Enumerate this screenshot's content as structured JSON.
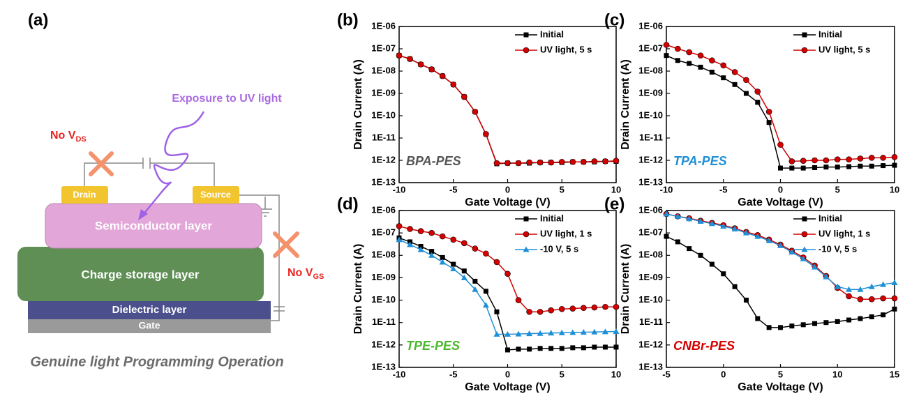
{
  "diagram": {
    "panel": "(a)",
    "uv_label": "Exposure to UV light",
    "no_vds": {
      "text": "No V",
      "sub": "DS"
    },
    "no_vgs": {
      "text": "No V",
      "sub": "GS"
    },
    "drain": "Drain",
    "source": "Source",
    "semiconductor": "Semiconductor layer",
    "charge_storage": "Charge storage layer",
    "dielectric": "Dielectric layer",
    "gate": "Gate",
    "caption": "Genuine light Programming Operation"
  },
  "chart_data": [
    {
      "type": "line",
      "panel": "(b)",
      "x_label": "Gate Voltage (V)",
      "y_label": "Drain Current (A)",
      "log_y": true,
      "legend": "upper right",
      "annotation": {
        "text": "BPA-PES",
        "color": "#555555"
      },
      "xlim": [
        -10,
        10
      ],
      "xticks": [
        -10,
        -5,
        0,
        5,
        10
      ],
      "ylim": [
        1e-13,
        1e-06
      ],
      "yticks": [
        {
          "value": 1e-13,
          "label": "1E-13"
        },
        {
          "value": 1e-12,
          "label": "1E-12"
        },
        {
          "value": 1e-11,
          "label": "1E-11"
        },
        {
          "value": 1e-10,
          "label": "1E-10"
        },
        {
          "value": 1e-09,
          "label": "1E-09"
        },
        {
          "value": 1e-08,
          "label": "1E-08"
        },
        {
          "value": 1e-07,
          "label": "1E-07"
        },
        {
          "value": 1e-06,
          "label": "1E-06"
        }
      ],
      "x": [
        -10,
        -9,
        -8,
        -7,
        -6,
        -5,
        -4,
        -3,
        -2,
        -1,
        0,
        1,
        2,
        3,
        4,
        5,
        6,
        7,
        8,
        9,
        10
      ],
      "series": [
        {
          "name": "Initial",
          "color": "#000000",
          "marker": "square",
          "values": [
            5e-08,
            3.5e-08,
            2e-08,
            1.2e-08,
            6e-09,
            2.5e-09,
            7e-10,
            1.5e-10,
            1.5e-11,
            7e-13,
            7.5e-13,
            7.5e-13,
            7.5e-13,
            8e-13,
            8e-13,
            8e-13,
            8.5e-13,
            8.5e-13,
            8.5e-13,
            9e-13,
            9e-13
          ]
        },
        {
          "name": "UV light, 5 s",
          "color": "#d40000",
          "marker": "circle",
          "values": [
            5e-08,
            3.5e-08,
            2e-08,
            1.2e-08,
            6e-09,
            2.5e-09,
            7e-10,
            1.5e-10,
            1.5e-11,
            7.5e-13,
            7.5e-13,
            7.5e-13,
            8e-13,
            8e-13,
            8e-13,
            8.5e-13,
            8.5e-13,
            8.5e-13,
            9e-13,
            9e-13,
            9.5e-13
          ]
        }
      ]
    },
    {
      "type": "line",
      "panel": "(c)",
      "x_label": "Gate Voltage (V)",
      "y_label": "Drain Current (A)",
      "log_y": true,
      "legend": "upper right",
      "annotation": {
        "text": "TPA-PES",
        "color": "#1f8fd6"
      },
      "xlim": [
        -10,
        10
      ],
      "xticks": [
        -10,
        -5,
        0,
        5,
        10
      ],
      "ylim": [
        1e-13,
        1e-06
      ],
      "yticks": [
        {
          "value": 1e-13,
          "label": "1E-13"
        },
        {
          "value": 1e-12,
          "label": "1E-12"
        },
        {
          "value": 1e-11,
          "label": "1E-11"
        },
        {
          "value": 1e-10,
          "label": "1E-10"
        },
        {
          "value": 1e-09,
          "label": "1E-09"
        },
        {
          "value": 1e-08,
          "label": "1E-08"
        },
        {
          "value": 1e-07,
          "label": "1E-07"
        },
        {
          "value": 1e-06,
          "label": "1E-06"
        }
      ],
      "x": [
        -10,
        -9,
        -8,
        -7,
        -6,
        -5,
        -4,
        -3,
        -2,
        -1,
        0,
        1,
        2,
        3,
        4,
        5,
        6,
        7,
        8,
        9,
        10
      ],
      "series": [
        {
          "name": "Initial",
          "color": "#000000",
          "marker": "square",
          "values": [
            5e-08,
            3e-08,
            2.2e-08,
            1.5e-08,
            9e-09,
            5e-09,
            2.5e-09,
            1e-09,
            4e-10,
            5e-11,
            4.5e-13,
            4.5e-13,
            4.5e-13,
            4.7e-13,
            5e-13,
            5e-13,
            5.2e-13,
            5.5e-13,
            5.5e-13,
            5.8e-13,
            6e-13
          ]
        },
        {
          "name": "UV light, 5 s",
          "color": "#d40000",
          "marker": "circle",
          "values": [
            1.5e-07,
            1e-07,
            7e-08,
            5e-08,
            3e-08,
            1.8e-08,
            9e-09,
            4e-09,
            1.2e-09,
            1.5e-10,
            5e-12,
            9e-13,
            9.5e-13,
            1e-12,
            1e-12,
            1.1e-12,
            1.1e-12,
            1.2e-12,
            1.3e-12,
            1.3e-12,
            1.4e-12
          ]
        }
      ]
    },
    {
      "type": "line",
      "panel": "(d)",
      "x_label": "Gate Voltage (V)",
      "y_label": "Drain Current (A)",
      "log_y": true,
      "legend": "upper right",
      "annotation": {
        "text": "TPE-PES",
        "color": "#4cb82e"
      },
      "xlim": [
        -10,
        10
      ],
      "xticks": [
        -10,
        -5,
        0,
        5,
        10
      ],
      "ylim": [
        1e-13,
        1e-06
      ],
      "yticks": [
        {
          "value": 1e-13,
          "label": "1E-13"
        },
        {
          "value": 1e-12,
          "label": "1E-12"
        },
        {
          "value": 1e-11,
          "label": "1E-11"
        },
        {
          "value": 1e-10,
          "label": "1E-10"
        },
        {
          "value": 1e-09,
          "label": "1E-09"
        },
        {
          "value": 1e-08,
          "label": "1E-08"
        },
        {
          "value": 1e-07,
          "label": "1E-07"
        },
        {
          "value": 1e-06,
          "label": "1E-06"
        }
      ],
      "x": [
        -10,
        -9,
        -8,
        -7,
        -6,
        -5,
        -4,
        -3,
        -2,
        -1,
        0,
        1,
        2,
        3,
        4,
        5,
        6,
        7,
        8,
        9,
        10
      ],
      "series": [
        {
          "name": "Initial",
          "color": "#000000",
          "marker": "square",
          "values": [
            6e-08,
            4e-08,
            2.5e-08,
            1.5e-08,
            8e-09,
            4e-09,
            2e-09,
            7e-10,
            2.5e-10,
            3e-11,
            6e-13,
            6.5e-13,
            6.5e-13,
            7e-13,
            7e-13,
            7e-13,
            7.5e-13,
            7.5e-13,
            8e-13,
            8e-13,
            8e-13
          ]
        },
        {
          "name": "UV light, 1 s",
          "color": "#d40000",
          "marker": "circle",
          "values": [
            2e-07,
            1.5e-07,
            1.2e-07,
            1e-07,
            7e-08,
            5e-08,
            3.5e-08,
            2e-08,
            1.2e-08,
            5e-09,
            1.5e-09,
            1e-10,
            3e-11,
            3e-11,
            3.5e-11,
            4e-11,
            4.2e-11,
            4.5e-11,
            4.7e-11,
            5e-11,
            5e-11
          ]
        },
        {
          "name": "-10 V, 5 s",
          "color": "#1f8fd6",
          "marker": "triangle",
          "values": [
            5e-08,
            3e-08,
            1.8e-08,
            1e-08,
            5e-09,
            2.5e-09,
            1e-09,
            3e-10,
            6e-11,
            3e-12,
            3e-12,
            3.1e-12,
            3.2e-12,
            3.3e-12,
            3.4e-12,
            3.5e-12,
            3.6e-12,
            3.7e-12,
            3.8e-12,
            3.9e-12,
            4e-12
          ]
        }
      ]
    },
    {
      "type": "line",
      "panel": "(e)",
      "x_label": "Gate Voltage (V)",
      "y_label": "Drain Current (A)",
      "log_y": true,
      "legend": "upper right",
      "annotation": {
        "text": "CNBr-PES",
        "color": "#d40000"
      },
      "xlim": [
        -5,
        15
      ],
      "xticks": [
        -5,
        0,
        5,
        10,
        15
      ],
      "ylim": [
        1e-13,
        1e-06
      ],
      "yticks": [
        {
          "value": 1e-13,
          "label": "1E-13"
        },
        {
          "value": 1e-12,
          "label": "1E-12"
        },
        {
          "value": 1e-11,
          "label": "1E-11"
        },
        {
          "value": 1e-10,
          "label": "1E-10"
        },
        {
          "value": 1e-09,
          "label": "1E-09"
        },
        {
          "value": 1e-08,
          "label": "1E-08"
        },
        {
          "value": 1e-07,
          "label": "1E-07"
        },
        {
          "value": 1e-06,
          "label": "1E-06"
        }
      ],
      "x": [
        -5,
        -4,
        -3,
        -2,
        -1,
        0,
        1,
        2,
        3,
        4,
        5,
        6,
        7,
        8,
        9,
        10,
        11,
        12,
        13,
        14,
        15
      ],
      "series": [
        {
          "name": "Initial",
          "color": "#000000",
          "marker": "square",
          "values": [
            7e-08,
            4e-08,
            2e-08,
            1e-08,
            4e-09,
            1.5e-09,
            4e-10,
            1e-10,
            1.5e-11,
            6e-12,
            6e-12,
            7e-12,
            8e-12,
            9e-12,
            1e-11,
            1.1e-11,
            1.3e-11,
            1.5e-11,
            1.8e-11,
            2.2e-11,
            4e-11
          ]
        },
        {
          "name": "UV light, 1 s",
          "color": "#d40000",
          "marker": "circle",
          "values": [
            7e-07,
            5.5e-07,
            4.5e-07,
            3.5e-07,
            2.8e-07,
            2.2e-07,
            1.6e-07,
            1.1e-07,
            8e-08,
            5e-08,
            3e-08,
            1.6e-08,
            8e-09,
            3.5e-09,
            1.2e-09,
            3.5e-10,
            1.5e-10,
            1.1e-10,
            1.1e-10,
            1.2e-10,
            1.2e-10
          ]
        },
        {
          "name": "-10 V, 5 s",
          "color": "#1f8fd6",
          "marker": "triangle",
          "values": [
            7e-07,
            5.5e-07,
            4.3e-07,
            3.3e-07,
            2.6e-07,
            2e-07,
            1.5e-07,
            1e-07,
            7e-08,
            4.5e-08,
            2.7e-08,
            1.4e-08,
            7e-09,
            3e-09,
            1.1e-09,
            4e-10,
            3e-10,
            3e-10,
            4e-10,
            5e-10,
            6e-10
          ]
        }
      ]
    }
  ]
}
